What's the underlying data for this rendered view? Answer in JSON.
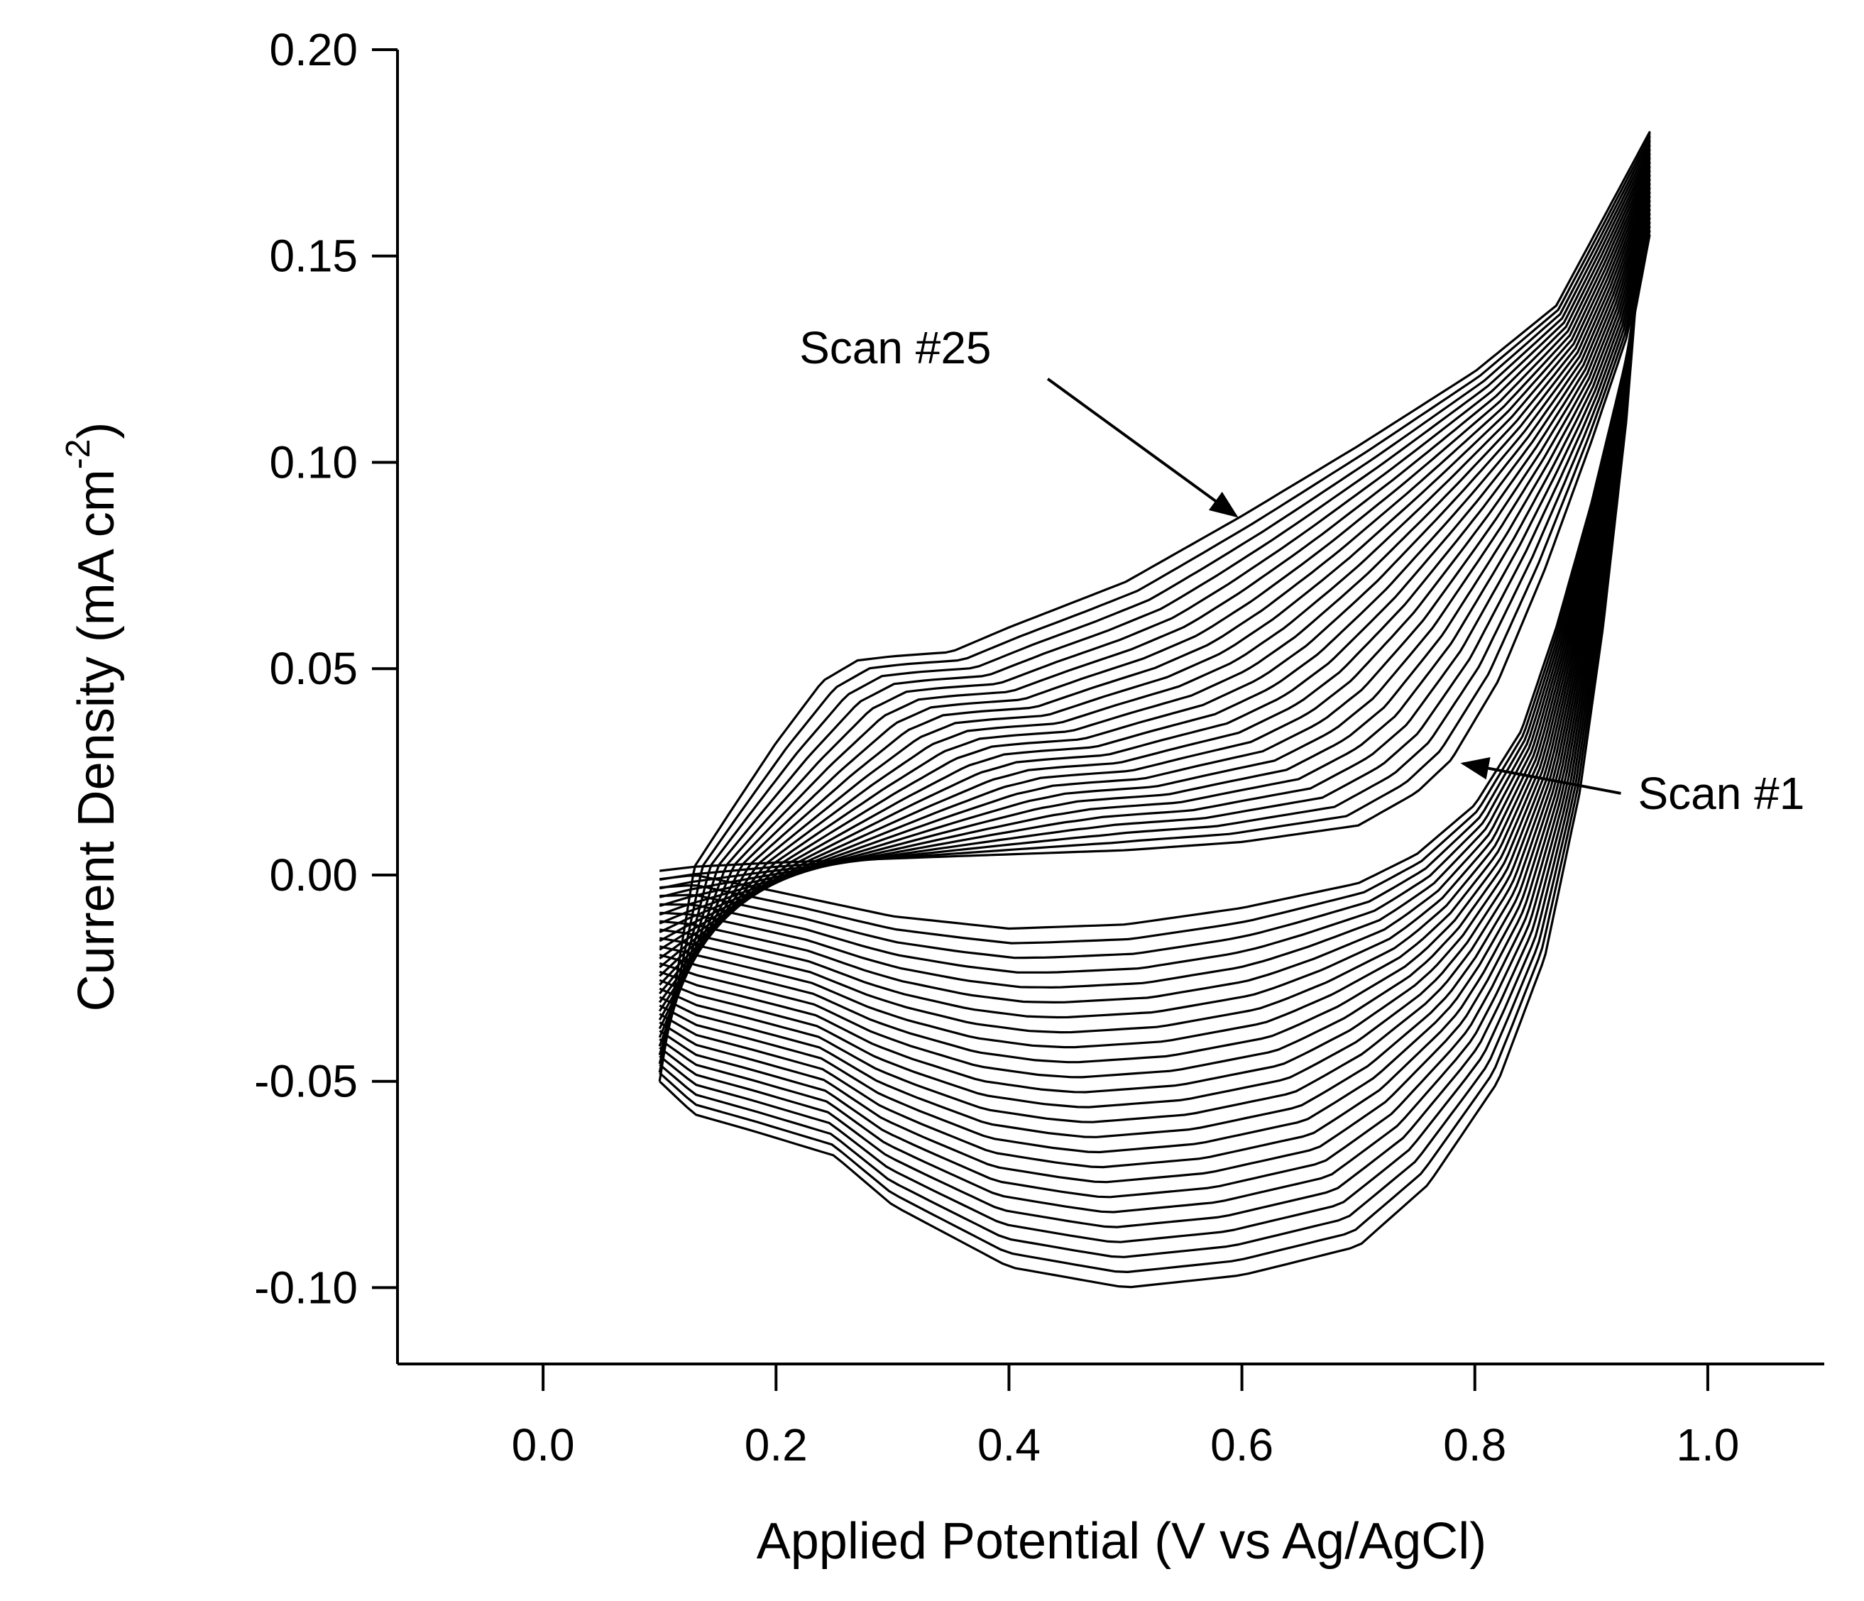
{
  "chart_data": {
    "type": "line",
    "title": "",
    "xlabel": "Applied Potential (V vs Ag/AgCl)",
    "ylabel": "Current Density (mA cm",
    "ylabel_superscript": "-2",
    "ylabel_suffix": ")",
    "xlim": [
      -0.125,
      1.1
    ],
    "ylim": [
      -0.1185,
      0.2
    ],
    "x_ticks": [
      0.0,
      0.2,
      0.4,
      0.6,
      0.8,
      1.0
    ],
    "x_tick_labels": [
      "0.0",
      "0.2",
      "0.4",
      "0.6",
      "0.8",
      "1.0"
    ],
    "y_ticks": [
      -0.1,
      -0.05,
      0.0,
      0.05,
      0.1,
      0.15,
      0.2
    ],
    "y_tick_labels": [
      "-0.10",
      "-0.05",
      "0.00",
      "0.05",
      "0.10",
      "0.15",
      "0.20"
    ],
    "grid": false,
    "line_color": "#000000",
    "scan_count": 25,
    "first_scan": {
      "forward": [
        [
          0.1,
          0.001
        ],
        [
          0.13,
          0.002
        ],
        [
          0.2,
          0.003
        ],
        [
          0.3,
          0.004
        ],
        [
          0.4,
          0.005
        ],
        [
          0.5,
          0.006
        ],
        [
          0.6,
          0.008
        ],
        [
          0.7,
          0.012
        ],
        [
          0.75,
          0.02
        ],
        [
          0.78,
          0.028
        ],
        [
          0.82,
          0.047
        ],
        [
          0.86,
          0.074
        ],
        [
          0.9,
          0.105
        ],
        [
          0.93,
          0.13
        ],
        [
          0.95,
          0.155
        ]
      ],
      "reverse": [
        [
          0.95,
          0.155
        ],
        [
          0.93,
          0.125
        ],
        [
          0.9,
          0.09
        ],
        [
          0.87,
          0.06
        ],
        [
          0.84,
          0.035
        ],
        [
          0.8,
          0.017
        ],
        [
          0.75,
          0.005
        ],
        [
          0.7,
          -0.002
        ],
        [
          0.6,
          -0.008
        ],
        [
          0.5,
          -0.012
        ],
        [
          0.4,
          -0.013
        ],
        [
          0.3,
          -0.01
        ],
        [
          0.2,
          -0.004
        ],
        [
          0.13,
          0.0
        ],
        [
          0.1,
          -0.001
        ]
      ]
    },
    "last_scan": {
      "forward": [
        [
          0.1,
          -0.05
        ],
        [
          0.13,
          0.002
        ],
        [
          0.16,
          0.015
        ],
        [
          0.2,
          0.032
        ],
        [
          0.24,
          0.047
        ],
        [
          0.27,
          0.052
        ],
        [
          0.3,
          0.053
        ],
        [
          0.35,
          0.054
        ],
        [
          0.4,
          0.06
        ],
        [
          0.5,
          0.071
        ],
        [
          0.6,
          0.087
        ],
        [
          0.7,
          0.104
        ],
        [
          0.8,
          0.122
        ],
        [
          0.87,
          0.138
        ],
        [
          0.95,
          0.18
        ]
      ],
      "reverse": [
        [
          0.95,
          0.18
        ],
        [
          0.93,
          0.11
        ],
        [
          0.91,
          0.06
        ],
        [
          0.89,
          0.02
        ],
        [
          0.86,
          -0.02
        ],
        [
          0.82,
          -0.05
        ],
        [
          0.76,
          -0.075
        ],
        [
          0.7,
          -0.09
        ],
        [
          0.6,
          -0.097
        ],
        [
          0.5,
          -0.1
        ],
        [
          0.4,
          -0.095
        ],
        [
          0.3,
          -0.08
        ],
        [
          0.25,
          -0.068
        ],
        [
          0.18,
          -0.062
        ],
        [
          0.13,
          -0.058
        ],
        [
          0.1,
          -0.05
        ]
      ]
    },
    "annotations": [
      {
        "text": "Scan #25",
        "x": 0.22,
        "y": 0.124,
        "arrow_tip": [
          0.595,
          0.087
        ]
      },
      {
        "text": "Scan #1",
        "x": 0.94,
        "y": 0.016,
        "arrow_tip": [
          0.79,
          0.027
        ]
      }
    ]
  }
}
